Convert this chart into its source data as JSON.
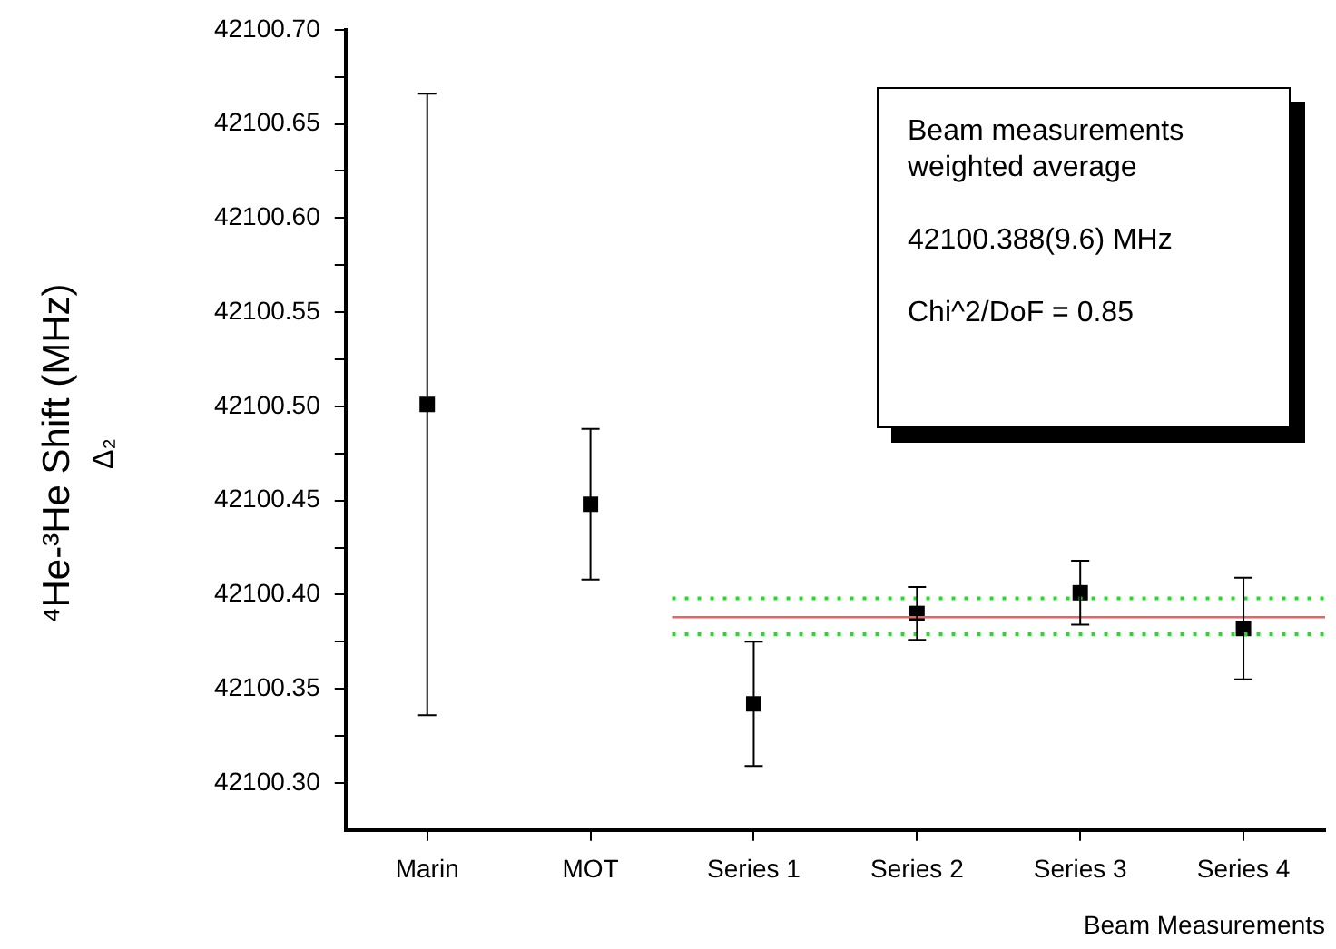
{
  "chart_data": {
    "type": "scatter",
    "categories": [
      "Marin",
      "MOT",
      "Series 1",
      "Series 2",
      "Series 3",
      "Series 4"
    ],
    "values": [
      42100.501,
      42100.448,
      42100.342,
      42100.39,
      42100.401,
      42100.382
    ],
    "errors": [
      0.165,
      0.04,
      0.033,
      0.014,
      0.017,
      0.027
    ],
    "color": "#000000",
    "marker": "square",
    "xlabel": "Beam Measurements",
    "ylabel": "⁴He-³He Shift (MHz)\nΔ₂",
    "ylim": [
      42100.275,
      42100.7
    ],
    "yticks": [
      {
        "value": 42100.3,
        "label": "42100.30"
      },
      {
        "value": 42100.325,
        "label": null
      },
      {
        "value": 42100.35,
        "label": "42100.35"
      },
      {
        "value": 42100.375,
        "label": null
      },
      {
        "value": 42100.4,
        "label": "42100.40"
      },
      {
        "value": 42100.425,
        "label": null
      },
      {
        "value": 42100.45,
        "label": "42100.45"
      },
      {
        "value": 42100.475,
        "label": null
      },
      {
        "value": 42100.5,
        "label": "42100.50"
      },
      {
        "value": 42100.525,
        "label": null
      },
      {
        "value": 42100.55,
        "label": "42100.55"
      },
      {
        "value": 42100.575,
        "label": null
      },
      {
        "value": 42100.6,
        "label": "42100.60"
      },
      {
        "value": 42100.625,
        "label": null
      },
      {
        "value": 42100.65,
        "label": "42100.65"
      },
      {
        "value": 42100.675,
        "label": null
      },
      {
        "value": 42100.7,
        "label": "42100.70"
      }
    ],
    "ref_lines": [
      {
        "axis": "y",
        "value": 42100.388,
        "color": "#f06060",
        "line_style": "solid"
      },
      {
        "axis": "y",
        "value": 42100.398,
        "color": "#22dd22",
        "line_style": "dotted"
      },
      {
        "axis": "y",
        "value": 42100.379,
        "color": "#22dd22",
        "line_style": "dotted"
      }
    ],
    "annotations": [
      "Beam measurements weighted average",
      "42100.388(9.6) MHz",
      "Chi^2/DoF = 0.85"
    ],
    "grid": false,
    "legend": false
  }
}
